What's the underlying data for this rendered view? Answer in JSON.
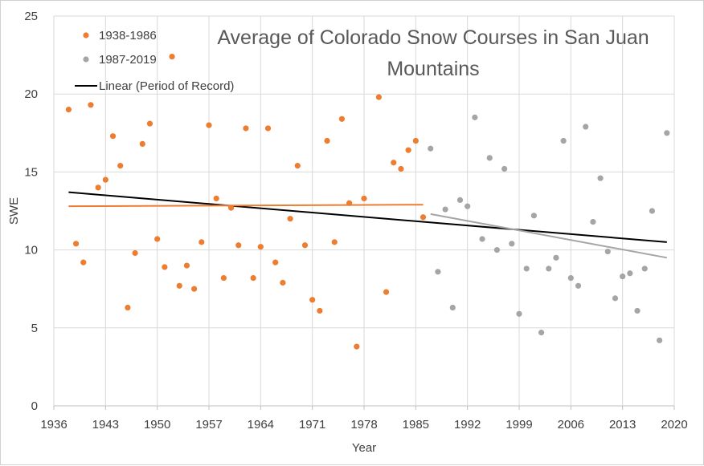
{
  "chart_data": {
    "type": "scatter",
    "title_lines": [
      "Average of Colorado Snow Courses in San Juan",
      "Mountains"
    ],
    "xlabel": "Year",
    "ylabel": "SWE",
    "xlim": [
      1936,
      2020
    ],
    "ylim": [
      0,
      25
    ],
    "xticks": [
      1936,
      1943,
      1950,
      1957,
      1964,
      1971,
      1978,
      1985,
      1992,
      1999,
      2006,
      2013,
      2020
    ],
    "yticks": [
      0,
      5,
      10,
      15,
      20,
      25
    ],
    "grid": "horizontal",
    "legend_position": "top-left",
    "series": [
      {
        "name": "1938-1986",
        "color": "#ED7D31",
        "points": [
          [
            1938,
            19.0
          ],
          [
            1939,
            10.4
          ],
          [
            1940,
            9.2
          ],
          [
            1941,
            19.3
          ],
          [
            1942,
            14.0
          ],
          [
            1943,
            14.5
          ],
          [
            1944,
            17.3
          ],
          [
            1945,
            15.4
          ],
          [
            1946,
            6.3
          ],
          [
            1947,
            9.8
          ],
          [
            1948,
            16.8
          ],
          [
            1949,
            18.1
          ],
          [
            1950,
            10.7
          ],
          [
            1951,
            8.9
          ],
          [
            1952,
            22.4
          ],
          [
            1953,
            7.7
          ],
          [
            1954,
            9.0
          ],
          [
            1955,
            7.5
          ],
          [
            1956,
            10.5
          ],
          [
            1957,
            18.0
          ],
          [
            1958,
            13.3
          ],
          [
            1959,
            8.2
          ],
          [
            1960,
            12.7
          ],
          [
            1961,
            10.3
          ],
          [
            1962,
            17.8
          ],
          [
            1963,
            8.2
          ],
          [
            1964,
            10.2
          ],
          [
            1965,
            17.8
          ],
          [
            1966,
            9.2
          ],
          [
            1967,
            7.9
          ],
          [
            1968,
            12.0
          ],
          [
            1969,
            15.4
          ],
          [
            1970,
            10.3
          ],
          [
            1971,
            6.8
          ],
          [
            1972,
            6.1
          ],
          [
            1973,
            17.0
          ],
          [
            1974,
            10.5
          ],
          [
            1975,
            18.4
          ],
          [
            1976,
            13.0
          ],
          [
            1977,
            3.8
          ],
          [
            1978,
            13.3
          ],
          [
            1980,
            19.8
          ],
          [
            1981,
            7.3
          ],
          [
            1982,
            15.6
          ],
          [
            1983,
            15.2
          ],
          [
            1984,
            16.4
          ],
          [
            1985,
            17.0
          ],
          [
            1986,
            12.1
          ]
        ]
      },
      {
        "name": "1987-2019",
        "color": "#A5A5A5",
        "points": [
          [
            1987,
            16.5
          ],
          [
            1988,
            8.6
          ],
          [
            1989,
            12.6
          ],
          [
            1990,
            6.3
          ],
          [
            1991,
            13.2
          ],
          [
            1992,
            12.8
          ],
          [
            1993,
            18.5
          ],
          [
            1994,
            10.7
          ],
          [
            1995,
            15.9
          ],
          [
            1996,
            10.0
          ],
          [
            1997,
            15.2
          ],
          [
            1998,
            10.4
          ],
          [
            1999,
            5.9
          ],
          [
            2000,
            8.8
          ],
          [
            2001,
            12.2
          ],
          [
            2002,
            4.7
          ],
          [
            2003,
            8.8
          ],
          [
            2004,
            9.5
          ],
          [
            2005,
            17.0
          ],
          [
            2006,
            8.2
          ],
          [
            2007,
            7.7
          ],
          [
            2008,
            17.9
          ],
          [
            2009,
            11.8
          ],
          [
            2010,
            14.6
          ],
          [
            2011,
            9.9
          ],
          [
            2012,
            6.9
          ],
          [
            2013,
            8.3
          ],
          [
            2014,
            8.5
          ],
          [
            2015,
            6.1
          ],
          [
            2016,
            8.8
          ],
          [
            2017,
            12.5
          ],
          [
            2018,
            4.2
          ],
          [
            2019,
            17.5
          ]
        ]
      }
    ],
    "trendlines": [
      {
        "name": "Linear (Period of Record)",
        "color": "#000000",
        "from": [
          1938,
          13.7
        ],
        "to": [
          2019,
          10.5
        ],
        "show_in_legend": true
      },
      {
        "name": "",
        "color": "#ED7D31",
        "from": [
          1938,
          12.8
        ],
        "to": [
          1986,
          12.9
        ],
        "show_in_legend": false
      },
      {
        "name": "",
        "color": "#A5A5A5",
        "from": [
          1987,
          12.3
        ],
        "to": [
          2019,
          9.5
        ],
        "show_in_legend": false
      }
    ]
  }
}
